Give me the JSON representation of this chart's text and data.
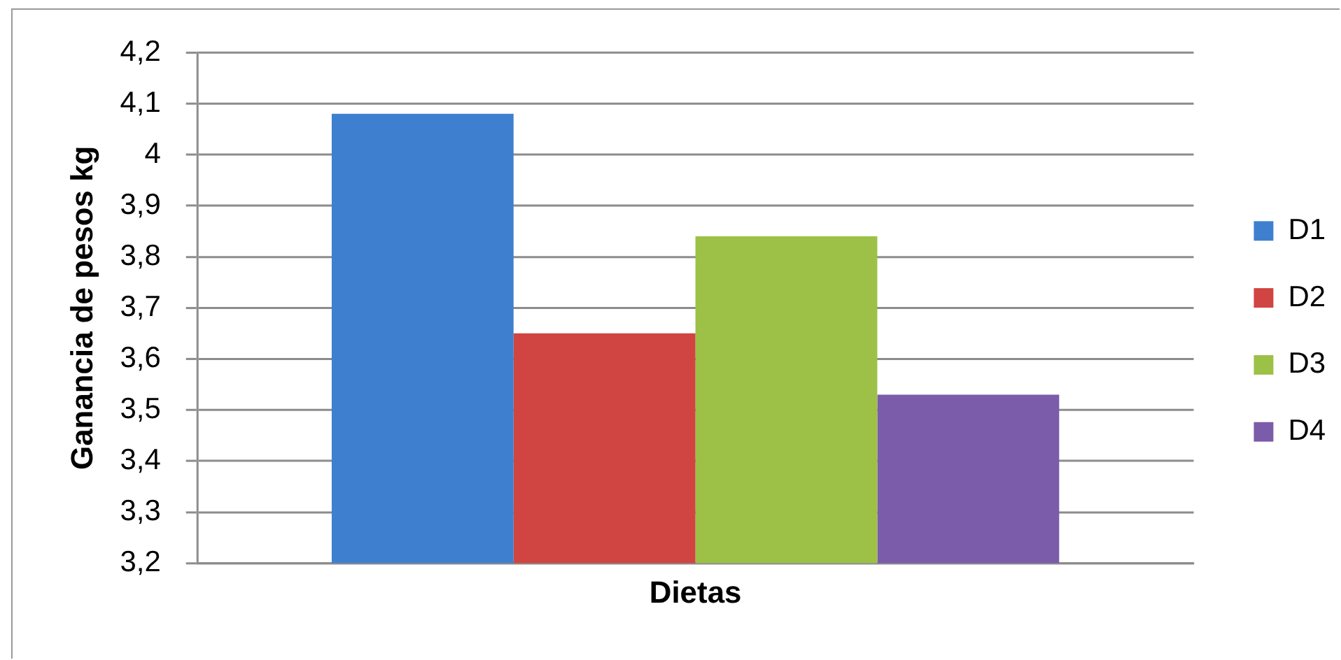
{
  "chart_data": {
    "type": "bar",
    "xlabel": "Dietas",
    "ylabel": "Ganancia de pesos kg",
    "categories": [
      null
    ],
    "series": [
      {
        "name": "D1",
        "color": "#3f7fcf",
        "values": [
          4.08
        ]
      },
      {
        "name": "D2",
        "color": "#d04442",
        "values": [
          3.65
        ]
      },
      {
        "name": "D3",
        "color": "#9cc146",
        "values": [
          3.84
        ]
      },
      {
        "name": "D4",
        "color": "#7b5caa",
        "values": [
          3.53
        ]
      }
    ],
    "ylim": [
      3.2,
      4.2
    ],
    "yticks": [
      {
        "value": 3.2,
        "label": "3,2"
      },
      {
        "value": 3.3,
        "label": "3,3"
      },
      {
        "value": 3.4,
        "label": "3,4"
      },
      {
        "value": 3.5,
        "label": "3,5"
      },
      {
        "value": 3.6,
        "label": "3,6"
      },
      {
        "value": 3.7,
        "label": "3,7"
      },
      {
        "value": 3.8,
        "label": "3,8"
      },
      {
        "value": 3.9,
        "label": "3,9"
      },
      4,
      {
        "value": 4.1,
        "label": "4,1"
      },
      {
        "value": 4.2,
        "label": "4,2"
      }
    ],
    "grid": "y",
    "legend": "right",
    "tick_labels": "y"
  }
}
